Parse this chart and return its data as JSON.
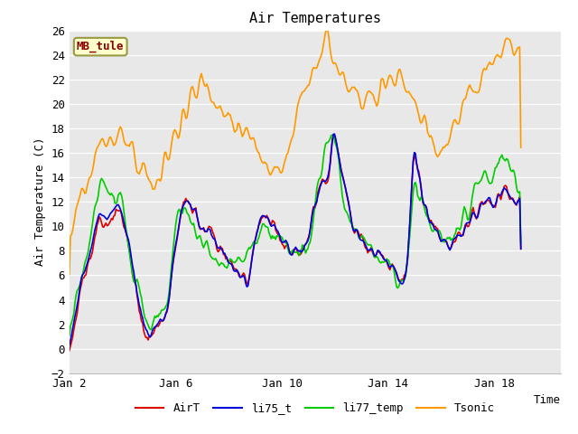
{
  "title": "Air Temperatures",
  "xlabel": "Time",
  "ylabel": "Air Temperature (C)",
  "ylim": [
    -2,
    26
  ],
  "yticks": [
    -2,
    0,
    2,
    4,
    6,
    8,
    10,
    12,
    14,
    16,
    18,
    20,
    22,
    24,
    26
  ],
  "xtick_labels": [
    "Jan 2",
    "Jan 6",
    "Jan 10",
    "Jan 14",
    "Jan 18"
  ],
  "xtick_positions": [
    1,
    5,
    9,
    13,
    17
  ],
  "xlim": [
    1,
    19.5
  ],
  "colors": {
    "AirT": "#dd0000",
    "li75_t": "#0000dd",
    "li77_temp": "#00cc00",
    "Tsonic": "#ff9900"
  },
  "legend_label": "MB_tule",
  "legend_box_color": "#ffffcc",
  "legend_box_edge": "#999944",
  "legend_text_color": "#880000",
  "plot_bg": "#e8e8e8",
  "grid_color": "#ffffff",
  "linewidth": 1.2,
  "title_fontsize": 11,
  "axis_fontsize": 9,
  "tick_fontsize": 9
}
